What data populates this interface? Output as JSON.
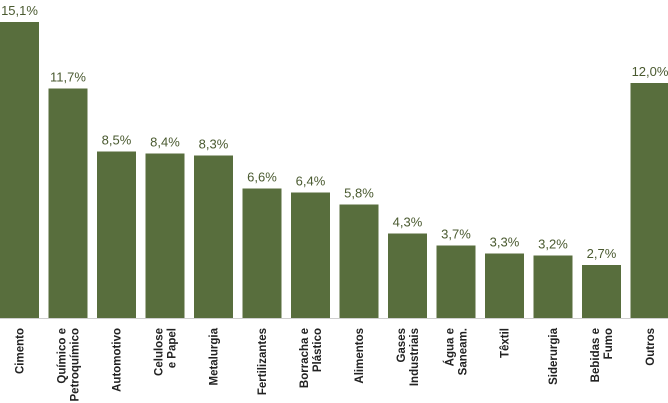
{
  "chart_data": {
    "type": "bar",
    "title": "",
    "xlabel": "",
    "ylabel": "",
    "ylim": [
      0,
      15.1
    ],
    "grid": false,
    "legend": "none",
    "bar_color": "#586e3d",
    "label_color": "#4a5a30",
    "categories": [
      [
        "Cimento"
      ],
      [
        "Químico e",
        "Petroquímico"
      ],
      [
        "Automotivo"
      ],
      [
        "Celulose",
        "e Papel"
      ],
      [
        "Metalurgia"
      ],
      [
        "Fertilizantes"
      ],
      [
        "Borracha e",
        "Plástico"
      ],
      [
        "Alimentos"
      ],
      [
        "Gases",
        "Industriais"
      ],
      [
        "Água e",
        "Saneam."
      ],
      [
        "Têxtil"
      ],
      [
        "Siderurgia"
      ],
      [
        "Bebidas e",
        "Fumo"
      ],
      [
        "Outros"
      ]
    ],
    "values": [
      15.1,
      11.7,
      8.5,
      8.4,
      8.3,
      6.6,
      6.4,
      5.8,
      4.3,
      3.7,
      3.3,
      3.2,
      2.7,
      12.0
    ],
    "value_labels": [
      "15,1%",
      "11,7%",
      "8,5%",
      "8,4%",
      "8,3%",
      "6,6%",
      "6,4%",
      "5,8%",
      "4,3%",
      "3,7%",
      "3,3%",
      "3,2%",
      "2,7%",
      "12,0%"
    ]
  }
}
